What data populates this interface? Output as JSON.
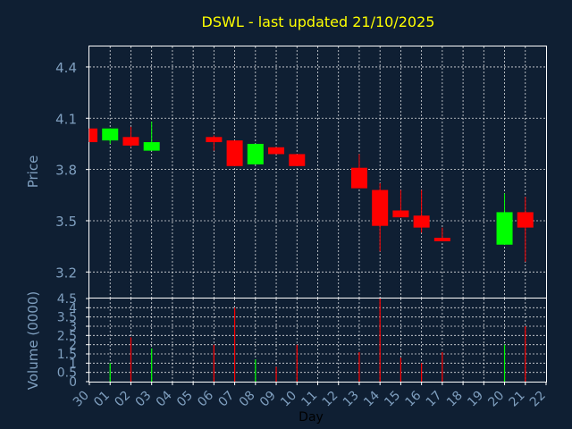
{
  "chart_data": [
    {
      "type": "candlestick",
      "title": "DSWL - last updated 21/10/2025",
      "ylabel": "Price",
      "ylim": [
        3.05,
        4.52
      ],
      "yticks": [
        "4.4",
        "4.1",
        "3.8",
        "3.5",
        "3.2"
      ],
      "y_tick_values": [
        4.4,
        4.1,
        3.8,
        3.5,
        3.2
      ],
      "grid": true,
      "colors": {
        "up": "#00ff00",
        "down": "#ff0000",
        "background": "#0f1f33",
        "grid": "#ffffff",
        "axis_text": "#7f9fbf",
        "title": "#ffff00"
      },
      "candles": [
        {
          "day": "30",
          "open": 4.04,
          "high": 4.04,
          "low": 3.96,
          "close": 3.96
        },
        {
          "day": "01",
          "open": 3.97,
          "high": 4.04,
          "low": 3.95,
          "close": 4.04
        },
        {
          "day": "02",
          "open": 3.99,
          "high": 4.05,
          "low": 3.93,
          "close": 3.94
        },
        {
          "day": "03",
          "open": 3.91,
          "high": 4.08,
          "low": 3.91,
          "close": 3.96
        },
        {
          "day": "06",
          "open": 3.99,
          "high": 4.0,
          "low": 3.91,
          "close": 3.96
        },
        {
          "day": "07",
          "open": 3.97,
          "high": 3.97,
          "low": 3.82,
          "close": 3.82
        },
        {
          "day": "08",
          "open": 3.83,
          "high": 3.95,
          "low": 3.83,
          "close": 3.95
        },
        {
          "day": "09",
          "open": 3.93,
          "high": 3.93,
          "low": 3.89,
          "close": 3.89
        },
        {
          "day": "10",
          "open": 3.89,
          "high": 3.89,
          "low": 3.82,
          "close": 3.82
        },
        {
          "day": "13",
          "open": 3.81,
          "high": 3.89,
          "low": 3.69,
          "close": 3.69
        },
        {
          "day": "14",
          "open": 3.68,
          "high": 3.72,
          "low": 3.32,
          "close": 3.47
        },
        {
          "day": "15",
          "open": 3.56,
          "high": 3.68,
          "low": 3.52,
          "close": 3.52
        },
        {
          "day": "16",
          "open": 3.53,
          "high": 3.68,
          "low": 3.43,
          "close": 3.46
        },
        {
          "day": "17",
          "open": 3.4,
          "high": 3.46,
          "low": 3.38,
          "close": 3.38
        },
        {
          "day": "20",
          "open": 3.36,
          "high": 3.66,
          "low": 3.36,
          "close": 3.55
        },
        {
          "day": "21",
          "open": 3.55,
          "high": 3.64,
          "low": 3.26,
          "close": 3.46
        }
      ]
    },
    {
      "type": "bar",
      "ylabel": "Volume (0000)",
      "ylim": [
        0,
        4.5
      ],
      "yticks": [
        "4.5",
        "4",
        "3.5",
        "3",
        "2.5",
        "2",
        "1.5",
        "1",
        "0.5",
        "0"
      ],
      "y_tick_values": [
        4.5,
        4,
        3.5,
        3,
        2.5,
        2,
        1.5,
        1,
        0.5,
        0
      ],
      "xlabel": "Day",
      "x_ticks": [
        "30",
        "01",
        "02",
        "03",
        "04",
        "05",
        "06",
        "07",
        "08",
        "09",
        "10",
        "11",
        "12",
        "13",
        "14",
        "15",
        "16",
        "17",
        "18",
        "19",
        "20",
        "21",
        "22"
      ],
      "grid": true,
      "bars": [
        {
          "day": "01",
          "value": 1.0,
          "color": "#00ff00"
        },
        {
          "day": "02",
          "value": 2.4,
          "color": "#ff0000"
        },
        {
          "day": "03",
          "value": 1.8,
          "color": "#00ff00"
        },
        {
          "day": "06",
          "value": 2.0,
          "color": "#ff0000"
        },
        {
          "day": "07",
          "value": 4.0,
          "color": "#ff0000"
        },
        {
          "day": "08",
          "value": 1.2,
          "color": "#00ff00"
        },
        {
          "day": "09",
          "value": 0.8,
          "color": "#ff0000"
        },
        {
          "day": "10",
          "value": 2.0,
          "color": "#ff0000"
        },
        {
          "day": "13",
          "value": 1.6,
          "color": "#ff0000"
        },
        {
          "day": "14",
          "value": 4.5,
          "color": "#ff0000"
        },
        {
          "day": "15",
          "value": 1.3,
          "color": "#ff0000"
        },
        {
          "day": "16",
          "value": 1.0,
          "color": "#ff0000"
        },
        {
          "day": "17",
          "value": 1.6,
          "color": "#ff0000"
        },
        {
          "day": "20",
          "value": 2.0,
          "color": "#00ff00"
        },
        {
          "day": "21",
          "value": 3.0,
          "color": "#ff0000"
        }
      ]
    }
  ]
}
